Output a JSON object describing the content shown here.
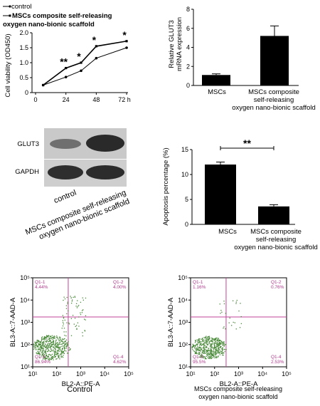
{
  "chart_data": [
    {
      "id": "viability",
      "type": "line",
      "ylabel": "Cell viability (OD450)",
      "x": [
        6,
        24,
        36,
        48,
        72
      ],
      "x_ticks": [
        "0",
        "24",
        "48",
        "72 h"
      ],
      "ylim": [
        0,
        2.0
      ],
      "y_ticks": [
        "0",
        "0.5",
        "1.0",
        "1.5",
        "2.0"
      ],
      "series": [
        {
          "name": "control",
          "values": [
            0.25,
            0.52,
            0.73,
            1.15,
            1.5
          ]
        },
        {
          "name": "MSCs composite self-releasing oxygen nano-bionic scaffold",
          "values": [
            0.25,
            0.82,
            1.0,
            1.55,
            1.72
          ]
        }
      ],
      "annotations": [
        "**",
        "*",
        "*",
        "*"
      ]
    },
    {
      "id": "glut3",
      "type": "bar",
      "ylabel": "Relative GLUT3 mRNA expression",
      "categories": [
        "MSCs",
        "MSCs composite self-releasing oxygen nano-bionic scaffold"
      ],
      "values": [
        1.1,
        5.2
      ],
      "errors": [
        0.12,
        1.05
      ],
      "ylim": [
        0,
        8
      ],
      "y_ticks": [
        "0",
        "2",
        "4",
        "6",
        "8"
      ]
    },
    {
      "id": "western",
      "type": "table",
      "rows": [
        "GLUT3",
        "GAPDH"
      ],
      "columns": [
        "control",
        "MSCs composite self-releasing oxygen nano-bionic scaffold"
      ]
    },
    {
      "id": "apoptosis",
      "type": "bar",
      "ylabel": "Apoptosis percentage (%)",
      "categories": [
        "MSCs",
        "MSCs composite self-releasing oxygen nano-bionic scaffold"
      ],
      "values": [
        12.0,
        3.6
      ],
      "errors": [
        0.5,
        0.35
      ],
      "ylim": [
        0,
        15
      ],
      "y_ticks": [
        "0",
        "5",
        "10",
        "15"
      ],
      "significance": "**"
    },
    {
      "id": "flow-control",
      "type": "scatter",
      "xlabel": "BL2-A::PE-A",
      "ylabel": "BL3-A::7-AAD-A",
      "ticks": [
        "10¹",
        "10²",
        "10³",
        "10⁴",
        "10⁵"
      ],
      "quadrants": [
        {
          "name": "Q1-1",
          "value": "4.44%"
        },
        {
          "name": "Q1-2",
          "value": "4.00%"
        },
        {
          "name": "Q1-3",
          "value": "86.94%"
        },
        {
          "name": "Q1-4",
          "value": "4.62%"
        }
      ],
      "caption": "Control"
    },
    {
      "id": "flow-scaffold",
      "type": "scatter",
      "xlabel": "BL2-A::PE-A",
      "ylabel": "BL3-A::7-AAD-A",
      "ticks": [
        "10¹",
        "10²",
        "10³",
        "10⁴",
        "10⁵"
      ],
      "quadrants": [
        {
          "name": "Q1-1",
          "value": "1.16%"
        },
        {
          "name": "Q1-2",
          "value": "0.76%"
        },
        {
          "name": "Q1-3",
          "value": "95.5%"
        },
        {
          "name": "Q1-4",
          "value": "2.53%"
        }
      ],
      "caption": "MSCs composite self-releasing oxygen nano-bionic scaffold"
    }
  ],
  "legend": {
    "control": "control",
    "scaffold_line1": "MSCs composite self-releasing",
    "scaffold_line2": "oxygen nano-bionic scaffold"
  },
  "labels": {
    "scaffold_l1": "MSCs composite",
    "scaffold_l2": "self-releasing",
    "scaffold_l3": "oxygen nano-bionic scaffold",
    "scaffold_two_l1": "MSCs composite self-releasing",
    "scaffold_two_l2": "oxygen nano-bionic scaffold",
    "glut3_ylabel_l1": "Relative GLUT3",
    "glut3_ylabel_l2": "mRNA expression"
  },
  "colors": {
    "bar": "#000000",
    "quadrant_line": "#c2449a",
    "dots": "#4a8a3a"
  }
}
